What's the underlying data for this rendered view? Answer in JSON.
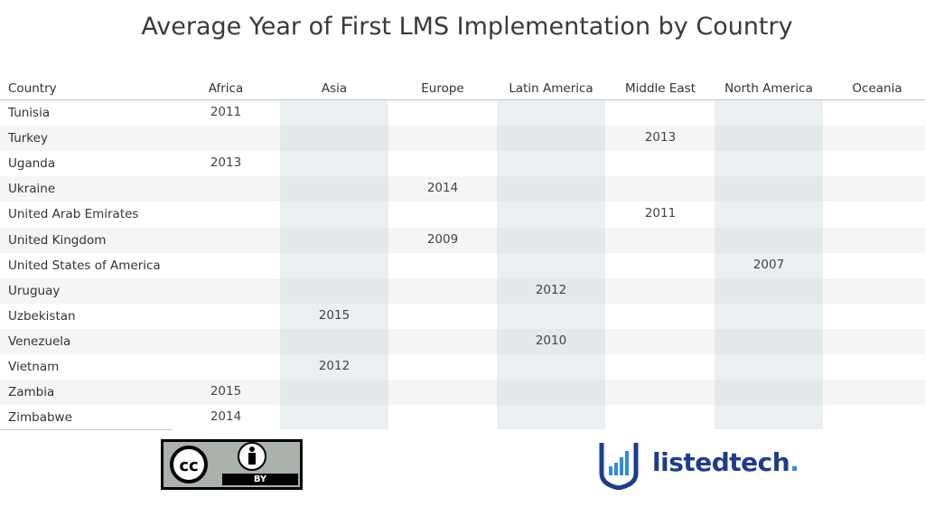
{
  "title": "Average Year of First LMS Implementation by Country",
  "chart_data": {
    "type": "table",
    "title": "Average Year of First LMS Implementation by Country",
    "row_header": "Country",
    "columns": [
      "Africa",
      "Asia",
      "Europe",
      "Latin America",
      "Middle East",
      "North America",
      "Oceania"
    ],
    "rows": [
      {
        "country": "Tunisia",
        "values": [
          "2011",
          "",
          "",
          "",
          "",
          "",
          ""
        ]
      },
      {
        "country": "Turkey",
        "values": [
          "",
          "",
          "",
          "",
          "2013",
          "",
          ""
        ]
      },
      {
        "country": "Uganda",
        "values": [
          "2013",
          "",
          "",
          "",
          "",
          "",
          ""
        ]
      },
      {
        "country": "Ukraine",
        "values": [
          "",
          "",
          "2014",
          "",
          "",
          "",
          ""
        ]
      },
      {
        "country": "United Arab Emirates",
        "values": [
          "",
          "",
          "",
          "",
          "2011",
          "",
          ""
        ]
      },
      {
        "country": "United Kingdom",
        "values": [
          "",
          "",
          "2009",
          "",
          "",
          "",
          ""
        ]
      },
      {
        "country": "United States of America",
        "values": [
          "",
          "",
          "",
          "",
          "",
          "2007",
          ""
        ]
      },
      {
        "country": "Uruguay",
        "values": [
          "",
          "",
          "",
          "2012",
          "",
          "",
          ""
        ]
      },
      {
        "country": "Uzbekistan",
        "values": [
          "",
          "2015",
          "",
          "",
          "",
          "",
          ""
        ]
      },
      {
        "country": "Venezuela",
        "values": [
          "",
          "",
          "",
          "2010",
          "",
          "",
          ""
        ]
      },
      {
        "country": "Vietnam",
        "values": [
          "",
          "2012",
          "",
          "",
          "",
          "",
          ""
        ]
      },
      {
        "country": "Zambia",
        "values": [
          "2015",
          "",
          "",
          "",
          "",
          "",
          ""
        ]
      },
      {
        "country": "Zimbabwe",
        "values": [
          "2014",
          "",
          "",
          "",
          "",
          "",
          ""
        ]
      }
    ]
  },
  "footer": {
    "license_badge_text": "BY",
    "logo_text_main": "listedtech",
    "logo_text_dot": "."
  },
  "colors": {
    "column_shade": "#dfe7ea",
    "row_band": "#f5f5f5",
    "logo_blue": "#1f3c8c",
    "logo_accent": "#2f8be0"
  }
}
